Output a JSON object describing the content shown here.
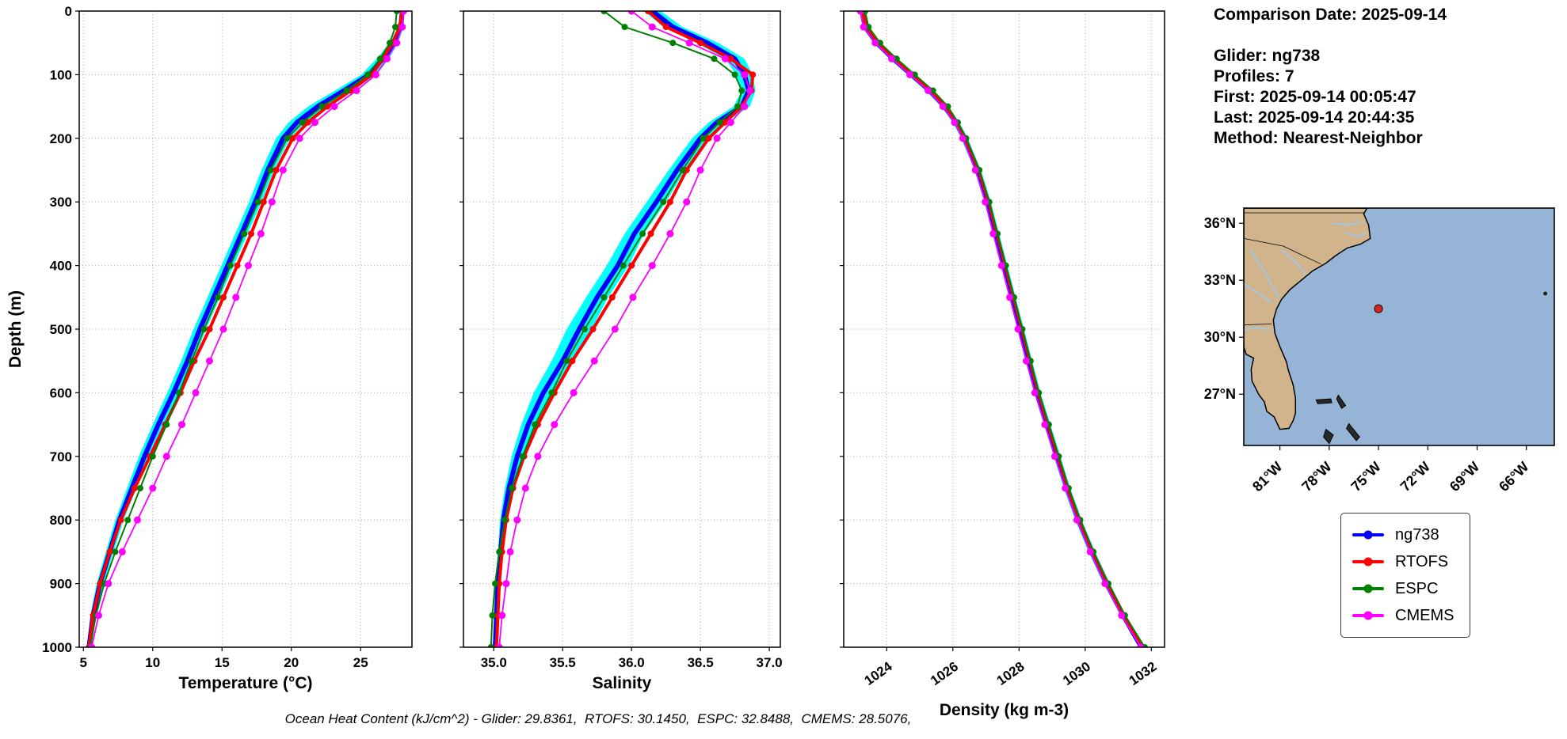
{
  "info_panel": {
    "comparison_date": "Comparison Date: 2025-09-14",
    "glider": "Glider: ng738",
    "profiles": "Profiles: 7",
    "first": "First: 2025-09-14 00:05:47",
    "last": "Last: 2025-09-14 20:44:35",
    "method": "Method: Nearest-Neighbor"
  },
  "footer": {
    "ohc_note": "Ocean Heat Content (kJ/cm^2) - Glider: 29.8361,  RTOFS: 30.1450,  ESPC: 32.8488,  CMEMS: 28.5076,"
  },
  "legend": {
    "entries": [
      {
        "label": "ng738",
        "color": "#0000ff"
      },
      {
        "label": "RTOFS",
        "color": "#ff0000"
      },
      {
        "label": "ESPC",
        "color": "#008000"
      },
      {
        "label": "CMEMS",
        "color": "#ff00ff"
      }
    ]
  },
  "colors": {
    "glider_blue": "#0000ff",
    "envelope_cyan": "#00ffff",
    "rtofs_red": "#ff0000",
    "espc_green": "#008000",
    "cmems_magenta": "#ff00ff",
    "land": "#d2b48c",
    "ocean": "#96b5d6"
  },
  "map": {
    "lat_ticks": [
      "36°N",
      "33°N",
      "30°N",
      "27°N"
    ],
    "lat_tick_values": [
      36,
      33,
      30,
      27
    ],
    "lon_ticks": [
      "81°W",
      "78°W",
      "75°W",
      "72°W",
      "69°W",
      "66°W"
    ],
    "lon_tick_values": [
      -81,
      -78,
      -75,
      -72,
      -69,
      -66
    ],
    "extent": {
      "lon_min": -83.2,
      "lon_max": -64.3,
      "lat_min": 24.3,
      "lat_max": 36.8
    },
    "marker": {
      "lon": -75.0,
      "lat": 31.5,
      "color": "#d62728"
    },
    "land_color": "#d2b48c",
    "ocean_color": "#96b5d6",
    "river_color": "#a4c8e4"
  },
  "chart_data": {
    "type": "line",
    "title": "",
    "grid": "dotted",
    "legend_position": "lower right of figure",
    "ylabel": "Depth (m)",
    "ylim": [
      0,
      1000
    ],
    "ytick_values": [
      0,
      100,
      200,
      300,
      400,
      500,
      600,
      700,
      800,
      900,
      1000
    ],
    "ytick_labels": [
      "0",
      "100",
      "200",
      "300",
      "400",
      "500",
      "600",
      "700",
      "800",
      "900",
      "1000"
    ],
    "depths": [
      0,
      25,
      50,
      75,
      100,
      125,
      150,
      175,
      200,
      250,
      300,
      350,
      400,
      450,
      500,
      550,
      600,
      650,
      700,
      750,
      800,
      850,
      900,
      950,
      1000
    ],
    "panels": [
      {
        "name": "temperature",
        "xlabel": "Temperature (°C)",
        "xlim": [
          4.7,
          28.7
        ],
        "xtick_values": [
          5,
          10,
          15,
          20,
          25
        ],
        "xtick_labels": [
          "5",
          "10",
          "15",
          "20",
          "25"
        ],
        "tick_rotation": 0,
        "series": [
          {
            "name": "ng738",
            "color": "#0000ff",
            "lw": 6,
            "ms": 0,
            "band_color": "#00ffff",
            "band": [
              0.15,
              0.2,
              0.3,
              0.45,
              0.55,
              0.65,
              0.7,
              0.6,
              0.5,
              0.45,
              0.45,
              0.45,
              0.45,
              0.45,
              0.45,
              0.45,
              0.45,
              0.4,
              0.4,
              0.35,
              0.3,
              0.28,
              0.25,
              0.2,
              0.12
            ],
            "values": [
              28.0,
              27.9,
              27.4,
              26.6,
              25.6,
              23.8,
              21.9,
              20.4,
              19.4,
              18.3,
              17.4,
              16.4,
              15.4,
              14.4,
              13.4,
              12.5,
              11.5,
              10.4,
              9.4,
              8.5,
              7.6,
              6.9,
              6.2,
              5.7,
              5.4
            ]
          },
          {
            "name": "RTOFS",
            "color": "#ff0000",
            "lw": 4,
            "ms": 4,
            "values": [
              28.0,
              27.8,
              27.3,
              26.6,
              25.8,
              24.3,
              22.6,
              21.2,
              20.1,
              18.9,
              18.0,
              17.1,
              16.1,
              15.1,
              14.1,
              13.0,
              12.0,
              10.9,
              9.8,
              8.7,
              7.7,
              6.9,
              6.2,
              5.7,
              5.4
            ]
          },
          {
            "name": "ESPC",
            "color": "#008000",
            "lw": 2,
            "ms": 4,
            "values": [
              27.6,
              27.5,
              27.1,
              26.4,
              25.5,
              24.0,
              22.2,
              20.8,
              19.7,
              18.5,
              17.6,
              16.6,
              15.6,
              14.7,
              13.7,
              12.8,
              11.9,
              11.0,
              10.0,
              9.1,
              8.2,
              7.3,
              6.5,
              5.9,
              5.5
            ]
          },
          {
            "name": "CMEMS",
            "color": "#ff00ff",
            "lw": 1.8,
            "ms": 4.5,
            "values": [
              28.1,
              28.0,
              27.6,
              26.9,
              26.1,
              24.7,
              23.1,
              21.7,
              20.6,
              19.4,
              18.6,
              17.8,
              16.9,
              16.0,
              15.1,
              14.1,
              13.1,
              12.1,
              11.0,
              10.0,
              8.9,
              7.8,
              6.8,
              6.1,
              5.6
            ]
          }
        ]
      },
      {
        "name": "salinity",
        "xlabel": "Salinity",
        "xlim": [
          34.78,
          37.08
        ],
        "xtick_values": [
          35.0,
          35.5,
          36.0,
          36.5,
          37.0
        ],
        "xtick_labels": [
          "35.0",
          "35.5",
          "36.0",
          "36.5",
          "37.0"
        ],
        "tick_rotation": 0,
        "series": [
          {
            "name": "ng738",
            "color": "#0000ff",
            "lw": 6,
            "ms": 0,
            "band_color": "#00ffff",
            "band": [
              0.06,
              0.07,
              0.08,
              0.07,
              0.06,
              0.05,
              0.06,
              0.06,
              0.06,
              0.06,
              0.07,
              0.07,
              0.08,
              0.08,
              0.09,
              0.08,
              0.07,
              0.05,
              0.04,
              0.03,
              0.025,
              0.02,
              0.02,
              0.015,
              0.015
            ],
            "values": [
              36.15,
              36.3,
              36.55,
              36.75,
              36.82,
              36.85,
              36.8,
              36.62,
              36.5,
              36.33,
              36.18,
              36.02,
              35.9,
              35.75,
              35.62,
              35.5,
              35.36,
              35.25,
              35.17,
              35.11,
              35.07,
              35.05,
              35.03,
              35.02,
              35.01
            ]
          },
          {
            "name": "RTOFS",
            "color": "#ff0000",
            "lw": 4,
            "ms": 4,
            "values": [
              36.12,
              36.25,
              36.5,
              36.72,
              36.88,
              36.87,
              36.8,
              36.68,
              36.56,
              36.4,
              36.28,
              36.14,
              36.0,
              35.86,
              35.72,
              35.57,
              35.44,
              35.32,
              35.22,
              35.14,
              35.09,
              35.06,
              35.04,
              35.03,
              35.02
            ]
          },
          {
            "name": "ESPC",
            "color": "#008000",
            "lw": 2,
            "ms": 4,
            "values": [
              35.8,
              35.95,
              36.3,
              36.6,
              36.75,
              36.8,
              36.77,
              36.64,
              36.52,
              36.37,
              36.23,
              36.08,
              35.94,
              35.8,
              35.66,
              35.53,
              35.42,
              35.3,
              35.21,
              35.13,
              35.08,
              35.04,
              35.01,
              34.99,
              34.98
            ]
          },
          {
            "name": "CMEMS",
            "color": "#ff00ff",
            "lw": 1.8,
            "ms": 4.5,
            "values": [
              36.0,
              36.15,
              36.42,
              36.68,
              36.82,
              36.86,
              36.82,
              36.72,
              36.62,
              36.5,
              36.4,
              36.28,
              36.15,
              36.01,
              35.88,
              35.73,
              35.58,
              35.44,
              35.32,
              35.23,
              35.17,
              35.12,
              35.09,
              35.06,
              35.04
            ]
          }
        ]
      },
      {
        "name": "density",
        "xlabel": "Density (kg m-3)",
        "xlim": [
          1022.7,
          1032.4
        ],
        "xtick_values": [
          1024,
          1026,
          1028,
          1030,
          1032
        ],
        "xtick_labels": [
          "1024",
          "1026",
          "1028",
          "1030",
          "1032"
        ],
        "tick_rotation": 35,
        "series": [
          {
            "name": "ng738",
            "color": "#0000ff",
            "lw": 6,
            "ms": 0,
            "band_color": "#00ffff",
            "band": [
              0.08,
              0.08,
              0.1,
              0.12,
              0.12,
              0.12,
              0.1,
              0.1,
              0.1,
              0.1,
              0.1,
              0.1,
              0.1,
              0.1,
              0.1,
              0.1,
              0.1,
              0.1,
              0.1,
              0.1,
              0.1,
              0.1,
              0.1,
              0.08,
              0.08
            ],
            "values": [
              1023.25,
              1023.35,
              1023.7,
              1024.2,
              1024.75,
              1025.3,
              1025.75,
              1026.1,
              1026.35,
              1026.75,
              1027.05,
              1027.3,
              1027.55,
              1027.8,
              1028.05,
              1028.3,
              1028.55,
              1028.85,
              1029.15,
              1029.45,
              1029.8,
              1030.2,
              1030.65,
              1031.15,
              1031.7
            ]
          },
          {
            "name": "RTOFS",
            "color": "#ff0000",
            "lw": 4,
            "ms": 4,
            "values": [
              1023.25,
              1023.4,
              1023.75,
              1024.25,
              1024.8,
              1025.35,
              1025.8,
              1026.12,
              1026.38,
              1026.78,
              1027.08,
              1027.33,
              1027.58,
              1027.83,
              1028.08,
              1028.33,
              1028.58,
              1028.88,
              1029.18,
              1029.48,
              1029.83,
              1030.23,
              1030.68,
              1031.18,
              1031.75
            ]
          },
          {
            "name": "ESPC",
            "color": "#008000",
            "lw": 2,
            "ms": 4,
            "values": [
              1023.35,
              1023.45,
              1023.8,
              1024.3,
              1024.85,
              1025.4,
              1025.85,
              1026.15,
              1026.4,
              1026.8,
              1027.1,
              1027.35,
              1027.6,
              1027.85,
              1028.1,
              1028.35,
              1028.6,
              1028.9,
              1029.2,
              1029.5,
              1029.85,
              1030.25,
              1030.7,
              1031.2,
              1031.8
            ]
          },
          {
            "name": "CMEMS",
            "color": "#ff00ff",
            "lw": 1.8,
            "ms": 4.5,
            "values": [
              1023.2,
              1023.3,
              1023.65,
              1024.15,
              1024.7,
              1025.25,
              1025.7,
              1026.05,
              1026.3,
              1026.68,
              1026.98,
              1027.22,
              1027.47,
              1027.72,
              1027.97,
              1028.22,
              1028.48,
              1028.78,
              1029.08,
              1029.4,
              1029.75,
              1030.15,
              1030.6,
              1031.1,
              1031.68
            ]
          }
        ]
      }
    ]
  }
}
